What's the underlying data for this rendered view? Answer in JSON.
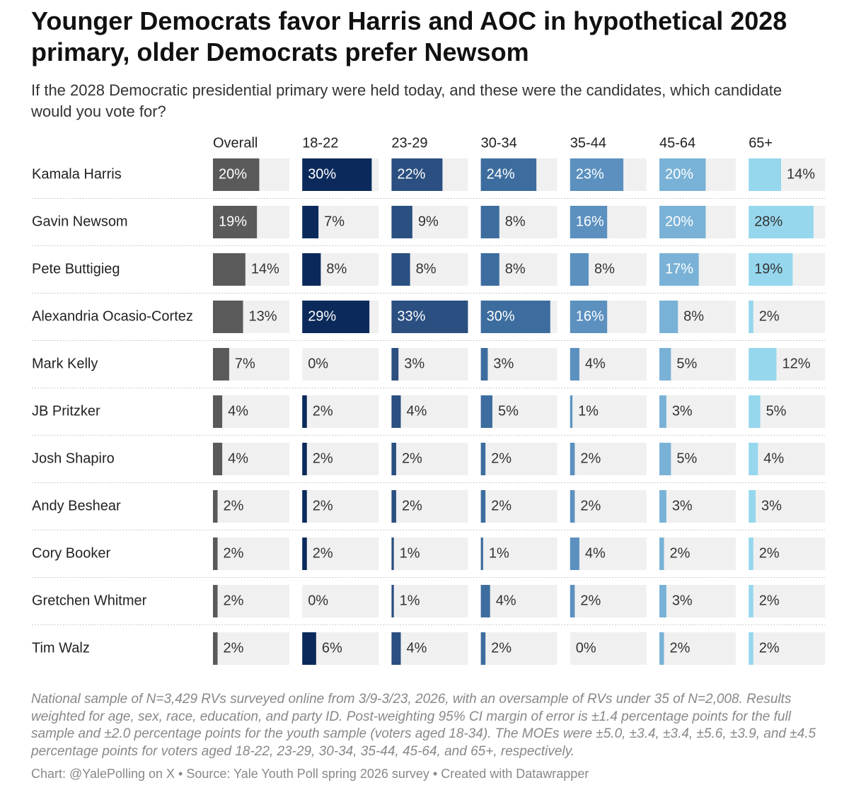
{
  "chart_data": {
    "type": "bar",
    "title": "Younger Democrats favor Harris and AOC in hypothetical 2028 primary, older Democrats prefer Newsom",
    "subtitle": "If the 2028 Democratic presidential primary were held today, and these were the candidates, which candidate would you vote for?",
    "categories": [
      "Kamala Harris",
      "Gavin Newsom",
      "Pete Buttigieg",
      "Alexandria Ocasio-Cortez",
      "Mark Kelly",
      "JB Pritzker",
      "Josh Shapiro",
      "Andy Beshear",
      "Cory Booker",
      "Gretchen Whitmer",
      "Tim Walz"
    ],
    "series": [
      {
        "name": "Overall",
        "color": "#5a5a5a",
        "values": [
          20,
          19,
          14,
          13,
          7,
          4,
          4,
          2,
          2,
          2,
          2
        ],
        "value_labels": [
          "20%",
          "19%",
          "14%",
          "13%",
          "7%",
          "4%",
          "4%",
          "2%",
          "2%",
          "2%",
          "2%"
        ]
      },
      {
        "name": "18-22",
        "color": "#0b2a5b",
        "values": [
          30,
          7,
          8,
          29,
          0,
          2,
          2,
          2,
          2,
          0,
          6
        ],
        "value_labels": [
          "30%",
          "7%",
          "8%",
          "29%",
          "0%",
          "2%",
          "2%",
          "2%",
          "2%",
          "0%",
          "6%"
        ]
      },
      {
        "name": "23-29",
        "color": "#2a4f80",
        "values": [
          22,
          9,
          8,
          33,
          3,
          4,
          2,
          2,
          1,
          1,
          4
        ],
        "value_labels": [
          "22%",
          "9%",
          "8%",
          "33%",
          "3%",
          "4%",
          "2%",
          "2%",
          "1%",
          "1%",
          "4%"
        ]
      },
      {
        "name": "30-34",
        "color": "#3d6d9e",
        "values": [
          24,
          8,
          8,
          30,
          3,
          5,
          2,
          2,
          1,
          4,
          2
        ],
        "value_labels": [
          "24%",
          "8%",
          "8%",
          "30%",
          "3%",
          "5%",
          "2%",
          "2%",
          "1%",
          "4%",
          "2%"
        ]
      },
      {
        "name": "35-44",
        "color": "#5b90bf",
        "values": [
          23,
          16,
          8,
          16,
          4,
          1,
          2,
          2,
          4,
          2,
          0
        ],
        "value_labels": [
          "23%",
          "16%",
          "8%",
          "16%",
          "4%",
          "1%",
          "2%",
          "2%",
          "4%",
          "2%",
          "0%"
        ]
      },
      {
        "name": "45-64",
        "color": "#79b2d6",
        "values": [
          20,
          20,
          17,
          8,
          5,
          3,
          5,
          3,
          2,
          3,
          2
        ],
        "value_labels": [
          "20%",
          "20%",
          "17%",
          "8%",
          "5%",
          "3%",
          "5%",
          "3%",
          "2%",
          "3%",
          "2%"
        ]
      },
      {
        "name": "65+",
        "color": "#96d7ee",
        "values": [
          14,
          28,
          19,
          2,
          12,
          5,
          4,
          3,
          2,
          2,
          2
        ],
        "value_labels": [
          "14%",
          "28%",
          "19%",
          "2%",
          "12%",
          "5%",
          "4%",
          "3%",
          "2%",
          "2%",
          "2%"
        ]
      }
    ],
    "notes": "National sample of N=3,429 RVs surveyed online from 3/9-3/23, 2026, with an oversample of RVs under 35 of N=2,008. Results weighted for age, sex, race, education, and party ID. Post-weighting 95% CI margin of error is ±1.4 percentage points for the full sample and ±2.0 percentage points for the youth sample (voters aged 18-34). The MOEs were ±5.0, ±3.4, ±3.4, ±5.6, ±3.9, and ±4.5 percentage points for voters aged 18-22, 23-29, 30-34, 35-44, 45-64, and 65+, respectively.",
    "credit": "Chart: @YalePolling on X • Source: Yale Youth Poll spring 2026 survey • Created with Datawrapper"
  }
}
